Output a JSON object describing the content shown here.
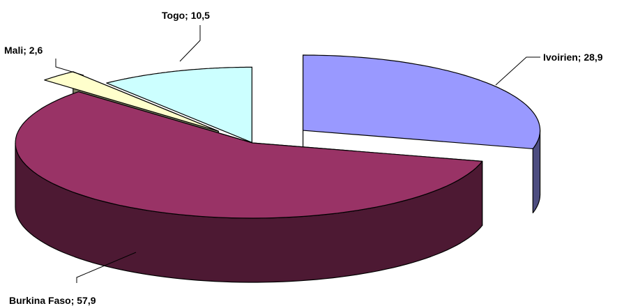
{
  "chart_data": {
    "type": "pie",
    "variant": "3d-exploded",
    "categories": [
      "Ivoirien",
      "Burkina Faso",
      "Mali",
      "Togo"
    ],
    "values": [
      28.9,
      57.9,
      2.6,
      10.5
    ],
    "labels": [
      "Ivoirien; 28,9",
      "Burkina Faso; 57,9",
      "Mali; 2,6",
      "Togo; 10,5"
    ],
    "colors": {
      "top": [
        "#9999ff",
        "#993366",
        "#ffffcc",
        "#ccffff"
      ],
      "side": [
        "#4d4d80",
        "#4d1933",
        "#808066",
        "#668080"
      ]
    },
    "legend": "none"
  }
}
